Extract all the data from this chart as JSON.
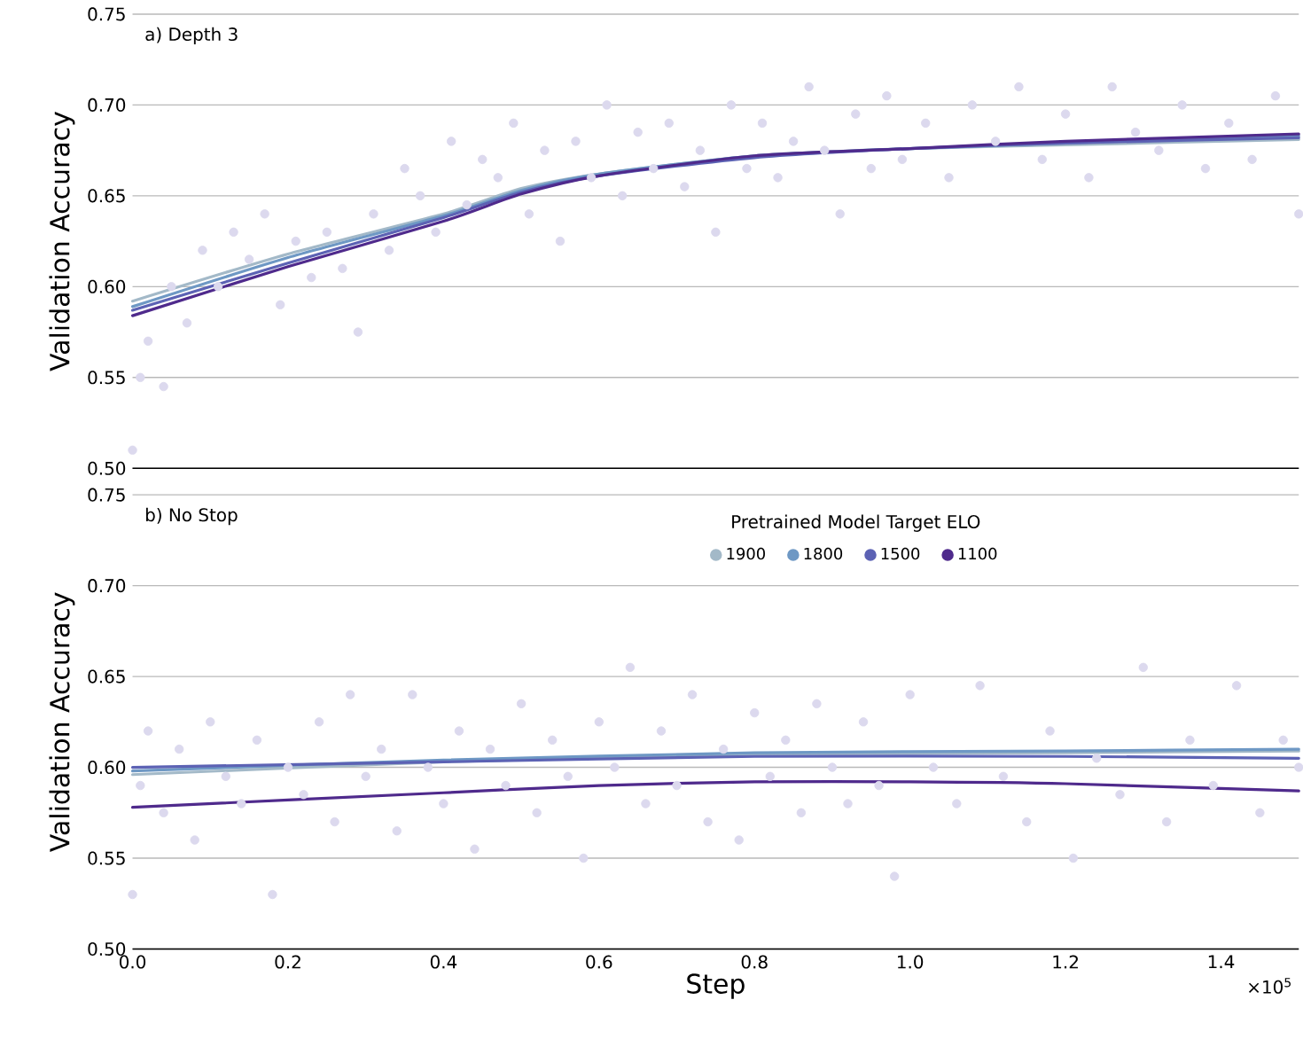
{
  "chart_data": [
    {
      "type": "line",
      "title": "a) Depth 3",
      "ylabel": "Validation Accuracy",
      "xlim": [
        0,
        1.5
      ],
      "ylim": [
        0.5,
        0.75
      ],
      "xticks": [
        0,
        0.2,
        0.4,
        0.6,
        0.8,
        1,
        1.2,
        1.4
      ],
      "yticks": [
        {
          "value": 0.5,
          "label": "0.50"
        },
        {
          "value": 0.55,
          "label": "0.55"
        },
        {
          "value": 0.6,
          "label": "0.60"
        },
        {
          "value": 0.65,
          "label": "0.65"
        },
        {
          "value": 0.7,
          "label": "0.70"
        },
        {
          "value": 0.75,
          "label": "0.75"
        }
      ],
      "grid": "y",
      "tick_labels": "y",
      "series": [
        {
          "type": "scatter",
          "color": "#dcd9ee",
          "x": [
            0,
            0.01,
            0.02,
            0.04,
            0.05,
            0.07,
            0.09,
            0.11,
            0.13,
            0.15,
            0.17,
            0.19,
            0.21,
            0.23,
            0.25,
            0.27,
            0.29,
            0.31,
            0.33,
            0.35,
            0.37,
            0.39,
            0.41,
            0.43,
            0.45,
            0.47,
            0.49,
            0.51,
            0.53,
            0.55,
            0.57,
            0.59,
            0.61,
            0.63,
            0.65,
            0.67,
            0.69,
            0.71,
            0.73,
            0.75,
            0.77,
            0.79,
            0.81,
            0.83,
            0.85,
            0.87,
            0.89,
            0.91,
            0.93,
            0.95,
            0.97,
            0.99,
            1.02,
            1.05,
            1.08,
            1.11,
            1.14,
            1.17,
            1.2,
            1.23,
            1.26,
            1.29,
            1.32,
            1.35,
            1.38,
            1.41,
            1.44,
            1.47,
            1.5
          ],
          "values": [
            0.51,
            0.55,
            0.57,
            0.545,
            0.6,
            0.58,
            0.62,
            0.6,
            0.63,
            0.615,
            0.64,
            0.59,
            0.625,
            0.605,
            0.63,
            0.61,
            0.575,
            0.64,
            0.62,
            0.665,
            0.65,
            0.63,
            0.68,
            0.645,
            0.67,
            0.66,
            0.69,
            0.64,
            0.675,
            0.625,
            0.68,
            0.66,
            0.7,
            0.65,
            0.685,
            0.665,
            0.69,
            0.655,
            0.675,
            0.63,
            0.7,
            0.665,
            0.69,
            0.66,
            0.68,
            0.71,
            0.675,
            0.64,
            0.695,
            0.665,
            0.705,
            0.67,
            0.69,
            0.66,
            0.7,
            0.68,
            0.71,
            0.67,
            0.695,
            0.66,
            0.71,
            0.685,
            0.675,
            0.7,
            0.665,
            0.69,
            0.67,
            0.705,
            0.64
          ]
        },
        {
          "color": "#a3b9c8",
          "x": [
            0,
            0.2,
            0.4,
            0.5,
            0.6,
            0.8,
            1,
            1.2,
            1.5
          ],
          "values": [
            0.592,
            0.618,
            0.64,
            0.654,
            0.662,
            0.672,
            0.676,
            0.678,
            0.681
          ]
        },
        {
          "color": "#6e98c4",
          "x": [
            0,
            0.2,
            0.4,
            0.5,
            0.6,
            0.8,
            1,
            1.2,
            1.5
          ],
          "values": [
            0.589,
            0.616,
            0.639,
            0.653,
            0.662,
            0.672,
            0.676,
            0.679,
            0.683
          ]
        },
        {
          "color": "#5c62b4",
          "x": [
            0,
            0.2,
            0.4,
            0.5,
            0.6,
            0.8,
            1,
            1.2,
            1.5
          ],
          "values": [
            0.587,
            0.613,
            0.638,
            0.652,
            0.661,
            0.671,
            0.676,
            0.679,
            0.682
          ]
        },
        {
          "color": "#4f2a8c",
          "x": [
            0,
            0.2,
            0.4,
            0.5,
            0.6,
            0.8,
            1,
            1.2,
            1.5
          ],
          "values": [
            0.584,
            0.611,
            0.636,
            0.651,
            0.661,
            0.672,
            0.676,
            0.68,
            0.684
          ]
        }
      ]
    },
    {
      "type": "line",
      "title": "b) No Stop",
      "xlabel": "Step",
      "ylabel": "Validation Accuracy",
      "legend_title": "Pretrained Model Target ELO",
      "legend": "top",
      "annotations": [
        "×10$^{5}$"
      ],
      "xlim": [
        0,
        1.5
      ],
      "ylim": [
        0.5,
        0.75
      ],
      "xticks": [
        {
          "value": 0,
          "label": "0.0"
        },
        0.2,
        0.4,
        0.6,
        0.8,
        {
          "value": 1,
          "label": "1.0"
        },
        1.2,
        1.4
      ],
      "yticks": [
        {
          "value": 0.5,
          "label": "0.50"
        },
        {
          "value": 0.55,
          "label": "0.55"
        },
        {
          "value": 0.6,
          "label": "0.60"
        },
        {
          "value": 0.65,
          "label": "0.65"
        },
        {
          "value": 0.7,
          "label": "0.70"
        },
        {
          "value": 0.75,
          "label": "0.75"
        }
      ],
      "grid": "y",
      "series": [
        {
          "type": "scatter",
          "color": "#dcd9ee",
          "x": [
            0,
            0.01,
            0.02,
            0.04,
            0.06,
            0.08,
            0.1,
            0.12,
            0.14,
            0.16,
            0.18,
            0.2,
            0.22,
            0.24,
            0.26,
            0.28,
            0.3,
            0.32,
            0.34,
            0.36,
            0.38,
            0.4,
            0.42,
            0.44,
            0.46,
            0.48,
            0.5,
            0.52,
            0.54,
            0.56,
            0.58,
            0.6,
            0.62,
            0.64,
            0.66,
            0.68,
            0.7,
            0.72,
            0.74,
            0.76,
            0.78,
            0.8,
            0.82,
            0.84,
            0.86,
            0.88,
            0.9,
            0.92,
            0.94,
            0.96,
            0.98,
            1,
            1.03,
            1.06,
            1.09,
            1.12,
            1.15,
            1.18,
            1.21,
            1.24,
            1.27,
            1.3,
            1.33,
            1.36,
            1.39,
            1.42,
            1.45,
            1.48,
            1.5
          ],
          "values": [
            0.53,
            0.59,
            0.62,
            0.575,
            0.61,
            0.56,
            0.625,
            0.595,
            0.58,
            0.615,
            0.53,
            0.6,
            0.585,
            0.625,
            0.57,
            0.64,
            0.595,
            0.61,
            0.565,
            0.64,
            0.6,
            0.58,
            0.62,
            0.555,
            0.61,
            0.59,
            0.635,
            0.575,
            0.615,
            0.595,
            0.55,
            0.625,
            0.6,
            0.655,
            0.58,
            0.62,
            0.59,
            0.64,
            0.57,
            0.61,
            0.56,
            0.63,
            0.595,
            0.615,
            0.575,
            0.635,
            0.6,
            0.58,
            0.625,
            0.59,
            0.54,
            0.64,
            0.6,
            0.58,
            0.645,
            0.595,
            0.57,
            0.62,
            0.55,
            0.605,
            0.585,
            0.655,
            0.57,
            0.615,
            0.59,
            0.645,
            0.575,
            0.615,
            0.6
          ]
        },
        {
          "name": "1900",
          "color": "#a3b9c8",
          "x": [
            0,
            0.4,
            0.8,
            1.2,
            1.5
          ],
          "values": [
            0.596,
            0.603,
            0.607,
            0.608,
            0.609
          ]
        },
        {
          "name": "1800",
          "color": "#6e98c4",
          "x": [
            0,
            0.4,
            0.8,
            1.2,
            1.5
          ],
          "values": [
            0.598,
            0.604,
            0.608,
            0.609,
            0.61
          ]
        },
        {
          "name": "1500",
          "color": "#5c62b4",
          "x": [
            0,
            0.4,
            0.8,
            1.2,
            1.5
          ],
          "values": [
            0.6,
            0.603,
            0.606,
            0.606,
            0.605
          ]
        },
        {
          "name": "1100",
          "color": "#4f2a8c",
          "x": [
            0,
            0.4,
            0.6,
            0.8,
            1,
            1.2,
            1.5
          ],
          "values": [
            0.578,
            0.586,
            0.59,
            0.592,
            0.592,
            0.591,
            0.587
          ]
        }
      ]
    }
  ]
}
